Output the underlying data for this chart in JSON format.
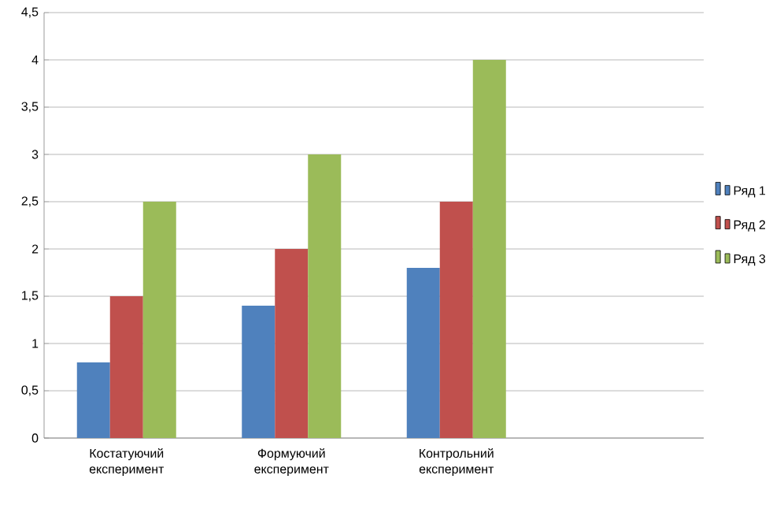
{
  "chart_data": {
    "type": "bar",
    "categories": [
      "Костатуючий експеримент",
      "Формуючий експеримент",
      "Контрольний експеримент",
      null
    ],
    "series": [
      {
        "name": "Ряд 1",
        "color": "#4f81bd",
        "values": [
          0.8,
          1.4,
          1.8,
          null
        ]
      },
      {
        "name": "Ряд 2",
        "color": "#c0504d",
        "values": [
          1.5,
          2,
          2.5,
          null
        ]
      },
      {
        "name": "Ряд 3",
        "color": "#9bbb59",
        "values": [
          2.5,
          3,
          4,
          null
        ]
      }
    ],
    "ylim": [
      0,
      4.5
    ],
    "yticks": [
      0,
      {
        "value": 0.5,
        "label": "0,5"
      },
      1,
      {
        "value": 1.5,
        "label": "1,5"
      },
      2,
      {
        "value": 2.5,
        "label": "2,5"
      },
      3,
      {
        "value": 3.5,
        "label": "3,5"
      },
      4,
      {
        "value": 4.5,
        "label": "4,5"
      }
    ],
    "grid": "y",
    "legend": "right"
  }
}
